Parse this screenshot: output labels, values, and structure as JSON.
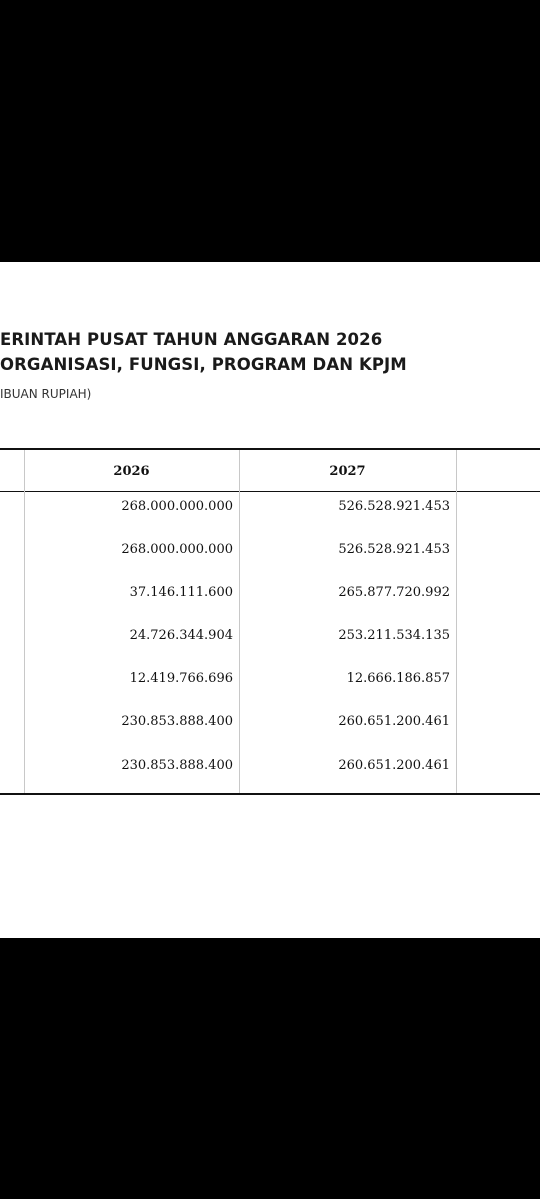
{
  "document": {
    "title_line1": "ERINTAH PUSAT TAHUN ANGGARAN 2026",
    "title_line2": "ORGANISASI, FUNGSI, PROGRAM DAN KPJM",
    "unit": "IBUAN RUPIAH)"
  },
  "table": {
    "headers": [
      "2026",
      "2027"
    ],
    "rows": [
      [
        "268.000.000.000",
        "526.528.921.453"
      ],
      [
        "268.000.000.000",
        "526.528.921.453"
      ],
      [
        "37.146.111.600",
        "265.877.720.992"
      ],
      [
        "24.726.344.904",
        "253.211.534.135"
      ],
      [
        "12.419.766.696",
        "12.666.186.857"
      ],
      [
        "230.853.888.400",
        "260.651.200.461"
      ],
      [
        "230.853.888.400",
        "260.651.200.461"
      ]
    ]
  }
}
